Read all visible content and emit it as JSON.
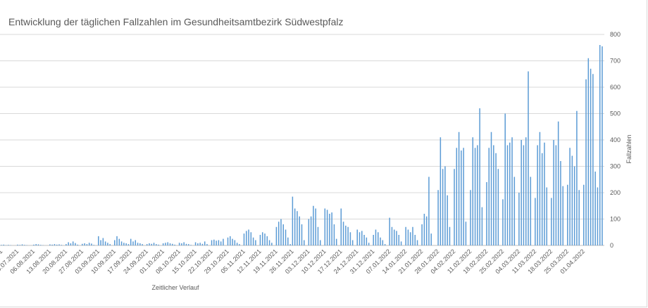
{
  "chart_data": {
    "type": "bar",
    "title": "Entwicklung der täglichen Fallzahlen im Gesundheitsamtbezirk Südwestpfalz",
    "xlabel": "Zeitlicher Verlauf",
    "ylabel": "Fallzahlen",
    "ylim": [
      0,
      800
    ],
    "yticks": [
      0,
      100,
      200,
      300,
      400,
      500,
      600,
      700,
      800
    ],
    "y_axis_position": "right",
    "grid": true,
    "bar_color": "#5b9bd5",
    "x_tick_labels": [
      "23.07.2021",
      "30.07.2021",
      "06.08.2021",
      "13.08.2021",
      "20.08.2021",
      "27.08.2021",
      "03.09.2021",
      "10.09.2021",
      "17.09.2021",
      "24.09.2021",
      "01.10.2021",
      "08.10.2021",
      "15.10.2021",
      "22.10.2021",
      "29.10.2021",
      "05.11.2021",
      "12.11.2021",
      "19.11.2021",
      "26.11.2021",
      "03.12.2021",
      "10.12.2021",
      "17.12.2021",
      "24.12.2021",
      "31.12.2021",
      "07.01.2022",
      "14.01.2022",
      "21.01.2022",
      "28.01.2022",
      "04.02.2022",
      "11.02.2022",
      "18.02.2022",
      "25.02.2022",
      "04.03.2022",
      "11.03.2022",
      "18.03.2022",
      "25.03.2022",
      "01.04.2022"
    ],
    "weekly_values": [
      [
        2,
        3,
        1,
        2,
        1,
        0,
        0
      ],
      [
        3,
        2,
        4,
        2,
        1,
        0,
        0
      ],
      [
        3,
        5,
        4,
        2,
        1,
        0,
        0
      ],
      [
        4,
        3,
        5,
        3,
        4,
        2,
        0
      ],
      [
        5,
        12,
        8,
        15,
        9,
        3,
        0
      ],
      [
        6,
        8,
        5,
        10,
        7,
        2,
        0
      ],
      [
        35,
        20,
        28,
        15,
        10,
        5,
        0
      ],
      [
        20,
        35,
        25,
        15,
        10,
        8,
        5
      ],
      [
        25,
        15,
        20,
        10,
        8,
        5,
        0
      ],
      [
        5,
        8,
        6,
        10,
        5,
        3,
        0
      ],
      [
        8,
        10,
        12,
        8,
        6,
        3,
        0
      ],
      [
        10,
        8,
        12,
        6,
        5,
        2,
        0
      ],
      [
        12,
        8,
        10,
        6,
        15,
        5,
        0
      ],
      [
        20,
        22,
        18,
        20,
        15,
        25,
        0
      ],
      [
        30,
        35,
        25,
        20,
        10,
        5,
        0
      ],
      [
        45,
        55,
        60,
        50,
        30,
        20,
        0
      ],
      [
        40,
        50,
        45,
        35,
        20,
        10,
        0
      ],
      [
        70,
        90,
        100,
        80,
        60,
        30,
        5
      ],
      [
        185,
        140,
        130,
        110,
        80,
        20,
        0
      ],
      [
        100,
        110,
        150,
        140,
        70,
        20,
        0
      ],
      [
        140,
        135,
        120,
        125,
        80,
        25,
        0
      ],
      [
        140,
        90,
        75,
        70,
        50,
        20,
        0
      ],
      [
        60,
        50,
        55,
        40,
        30,
        10,
        0
      ],
      [
        40,
        60,
        50,
        30,
        20,
        5,
        0
      ],
      [
        105,
        70,
        60,
        55,
        40,
        15,
        0
      ],
      [
        70,
        60,
        50,
        70,
        40,
        20,
        0
      ],
      [
        80,
        120,
        110,
        260,
        45,
        0,
        0
      ],
      [
        210,
        410,
        290,
        300,
        190,
        70,
        0
      ],
      [
        290,
        370,
        430,
        360,
        370,
        90,
        0
      ],
      [
        210,
        410,
        370,
        380,
        520,
        145,
        0
      ],
      [
        240,
        370,
        430,
        380,
        350,
        290,
        0
      ],
      [
        175,
        500,
        380,
        390,
        410,
        260,
        0
      ],
      [
        200,
        400,
        380,
        410,
        660,
        260,
        0
      ],
      [
        180,
        380,
        430,
        350,
        390,
        220,
        0
      ],
      [
        180,
        400,
        380,
        470,
        320,
        225,
        0
      ],
      [
        230,
        370,
        340,
        300,
        510,
        210,
        0
      ],
      [
        230,
        630,
        710,
        670,
        650,
        280,
        220
      ],
      [
        760,
        755
      ]
    ]
  }
}
